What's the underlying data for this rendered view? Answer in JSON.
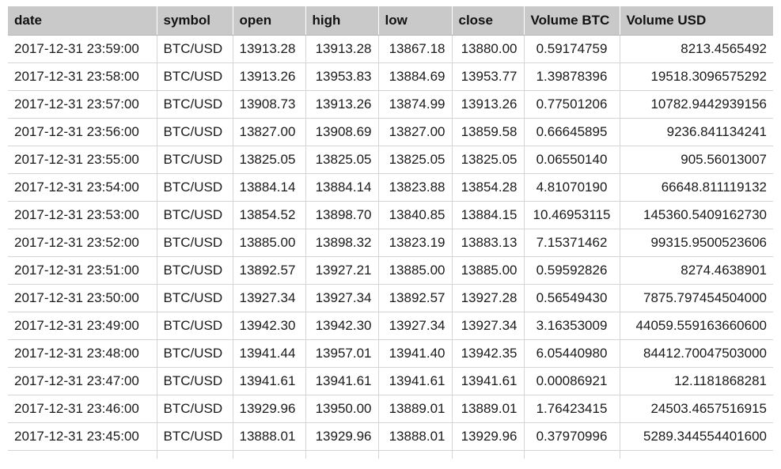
{
  "table": {
    "columns": [
      "date",
      "symbol",
      "open",
      "high",
      "low",
      "close",
      "Volume BTC",
      "Volume USD"
    ],
    "rows": [
      [
        "2017-12-31 23:59:00",
        "BTC/USD",
        "13913.28",
        "13913.28",
        "13867.18",
        "13880.00",
        "0.59174759",
        "8213.4565492"
      ],
      [
        "2017-12-31 23:58:00",
        "BTC/USD",
        "13913.26",
        "13953.83",
        "13884.69",
        "13953.77",
        "1.39878396",
        "19518.3096575292"
      ],
      [
        "2017-12-31 23:57:00",
        "BTC/USD",
        "13908.73",
        "13913.26",
        "13874.99",
        "13913.26",
        "0.77501206",
        "10782.9442939156"
      ],
      [
        "2017-12-31 23:56:00",
        "BTC/USD",
        "13827.00",
        "13908.69",
        "13827.00",
        "13859.58",
        "0.66645895",
        "9236.841134241"
      ],
      [
        "2017-12-31 23:55:00",
        "BTC/USD",
        "13825.05",
        "13825.05",
        "13825.05",
        "13825.05",
        "0.06550140",
        "905.56013007"
      ],
      [
        "2017-12-31 23:54:00",
        "BTC/USD",
        "13884.14",
        "13884.14",
        "13823.88",
        "13854.28",
        "4.81070190",
        "66648.811119132"
      ],
      [
        "2017-12-31 23:53:00",
        "BTC/USD",
        "13854.52",
        "13898.70",
        "13840.85",
        "13884.15",
        "10.46953115",
        "145360.5409162730"
      ],
      [
        "2017-12-31 23:52:00",
        "BTC/USD",
        "13885.00",
        "13898.32",
        "13823.19",
        "13883.13",
        "7.15371462",
        "99315.9500523606"
      ],
      [
        "2017-12-31 23:51:00",
        "BTC/USD",
        "13892.57",
        "13927.21",
        "13885.00",
        "13885.00",
        "0.59592826",
        "8274.4638901"
      ],
      [
        "2017-12-31 23:50:00",
        "BTC/USD",
        "13927.34",
        "13927.34",
        "13892.57",
        "13927.28",
        "0.56549430",
        "7875.797454504000"
      ],
      [
        "2017-12-31 23:49:00",
        "BTC/USD",
        "13942.30",
        "13942.30",
        "13927.34",
        "13927.34",
        "3.16353009",
        "44059.559163660600"
      ],
      [
        "2017-12-31 23:48:00",
        "BTC/USD",
        "13941.44",
        "13957.01",
        "13941.40",
        "13942.35",
        "6.05440980",
        "84412.70047503000"
      ],
      [
        "2017-12-31 23:47:00",
        "BTC/USD",
        "13941.61",
        "13941.61",
        "13941.61",
        "13941.61",
        "0.00086921",
        "12.1181868281"
      ],
      [
        "2017-12-31 23:46:00",
        "BTC/USD",
        "13929.96",
        "13950.00",
        "13889.01",
        "13889.01",
        "1.76423415",
        "24503.4657516915"
      ],
      [
        "2017-12-31 23:45:00",
        "BTC/USD",
        "13888.01",
        "13929.96",
        "13888.01",
        "13929.96",
        "0.37970996",
        "5289.344554401600"
      ]
    ]
  }
}
